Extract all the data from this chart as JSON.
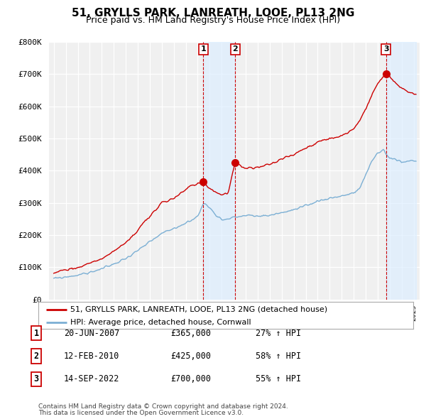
{
  "title": "51, GRYLLS PARK, LANREATH, LOOE, PL13 2NG",
  "subtitle": "Price paid vs. HM Land Registry's House Price Index (HPI)",
  "legend_line1": "51, GRYLLS PARK, LANREATH, LOOE, PL13 2NG (detached house)",
  "legend_line2": "HPI: Average price, detached house, Cornwall",
  "sale1_label": "1",
  "sale1_date": "20-JUN-2007",
  "sale1_price": "£365,000",
  "sale1_hpi": "27% ↑ HPI",
  "sale2_label": "2",
  "sale2_date": "12-FEB-2010",
  "sale2_price": "£425,000",
  "sale2_hpi": "58% ↑ HPI",
  "sale3_label": "3",
  "sale3_date": "14-SEP-2022",
  "sale3_price": "£700,000",
  "sale3_hpi": "55% ↑ HPI",
  "footnote1": "Contains HM Land Registry data © Crown copyright and database right 2024.",
  "footnote2": "This data is licensed under the Open Government Licence v3.0.",
  "ylim": [
    0,
    800000
  ],
  "yticks": [
    0,
    100000,
    200000,
    300000,
    400000,
    500000,
    600000,
    700000,
    800000
  ],
  "ytick_labels": [
    "£0",
    "£100K",
    "£200K",
    "£300K",
    "£400K",
    "£500K",
    "£600K",
    "£700K",
    "£800K"
  ],
  "sale_color": "#cc0000",
  "hpi_color": "#7bafd4",
  "vline_color": "#cc0000",
  "shade_color": "#ddeeff",
  "background_color": "#f0f0f0",
  "grid_color": "#cccccc",
  "sale1_year": 2007.47,
  "sale2_year": 2010.12,
  "sale3_year": 2022.71,
  "xmin": 1995,
  "xmax": 2025
}
